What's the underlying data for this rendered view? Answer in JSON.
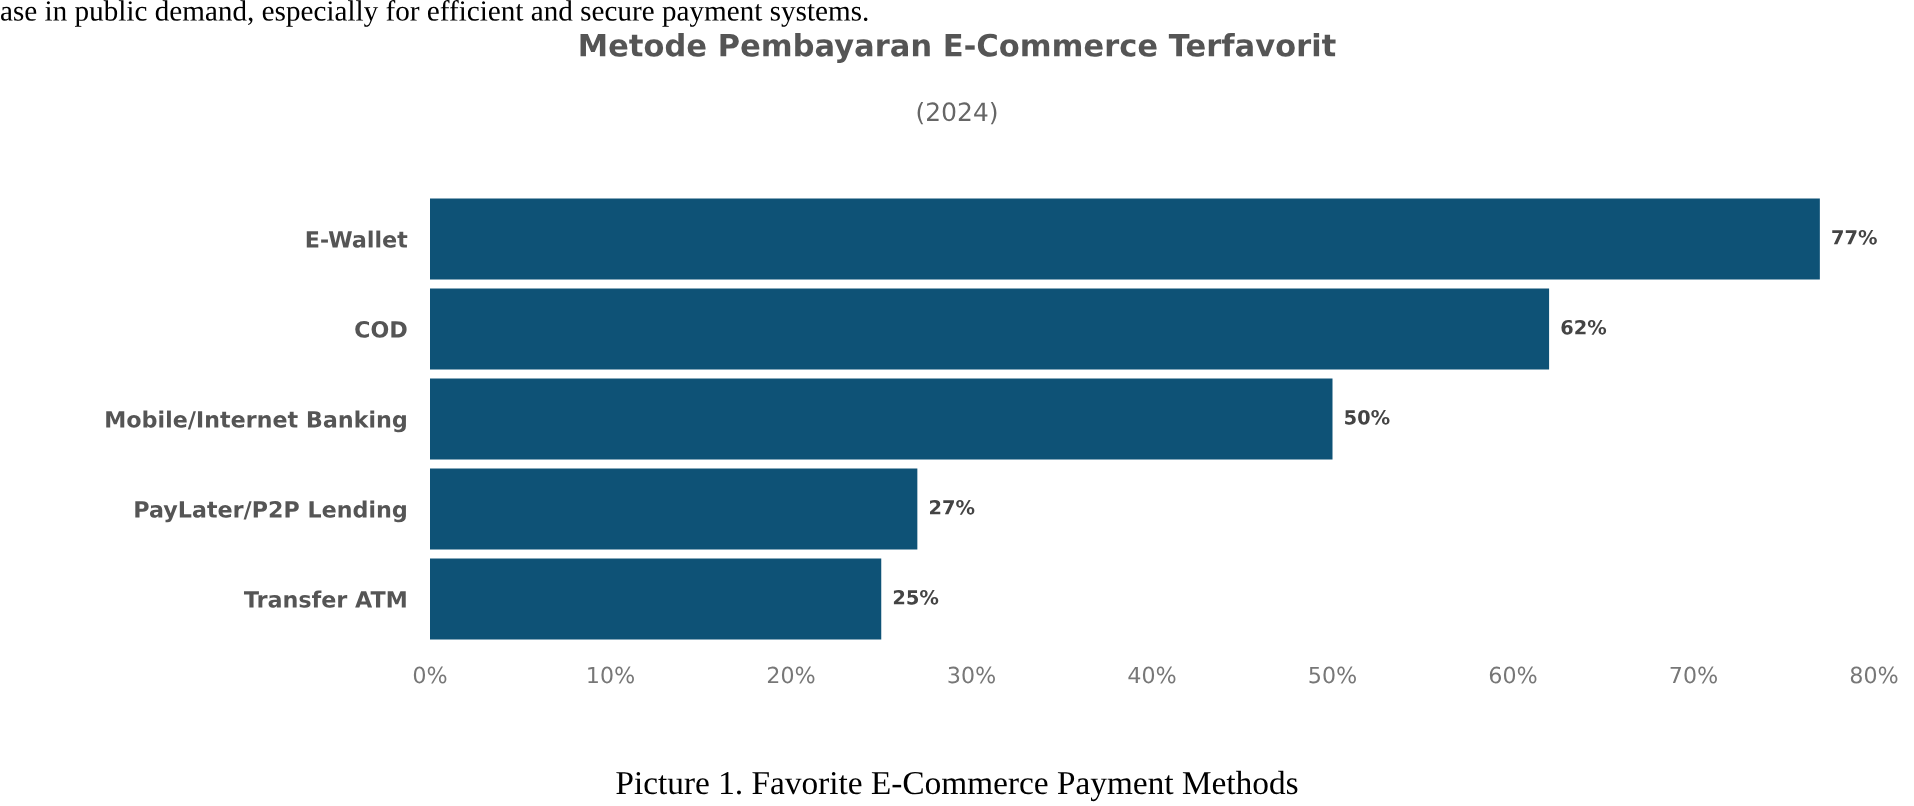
{
  "chart_data": {
    "type": "bar",
    "orientation": "horizontal",
    "title": "Metode Pembayaran E-Commerce Terfavorit",
    "subtitle": "(2024)",
    "categories": [
      "E-Wallet",
      "COD",
      "Mobile/Internet Banking",
      "PayLater/P2P Lending",
      "Transfer ATM"
    ],
    "values": [
      77,
      62,
      50,
      27,
      25
    ],
    "color": "#0e5276",
    "value_labels": [
      "77%",
      "62%",
      "50%",
      "27%",
      "25%"
    ],
    "xlim": [
      0,
      80
    ],
    "xticks": [
      {
        "value": 0,
        "label": "0%"
      },
      {
        "value": 10,
        "label": "10%"
      },
      {
        "value": 20,
        "label": "20%"
      },
      {
        "value": 30,
        "label": "30%"
      },
      {
        "value": 40,
        "label": "40%"
      },
      {
        "value": 50,
        "label": "50%"
      },
      {
        "value": 60,
        "label": "60%"
      },
      {
        "value": 70,
        "label": "70%"
      },
      {
        "value": 80,
        "label": "80%"
      }
    ],
    "grid": false,
    "legend": false,
    "annotations": [
      "ase in public demand, especially for efficient and secure payment systems.",
      "Picture 1. Favorite E-Commerce Payment Methods"
    ]
  }
}
